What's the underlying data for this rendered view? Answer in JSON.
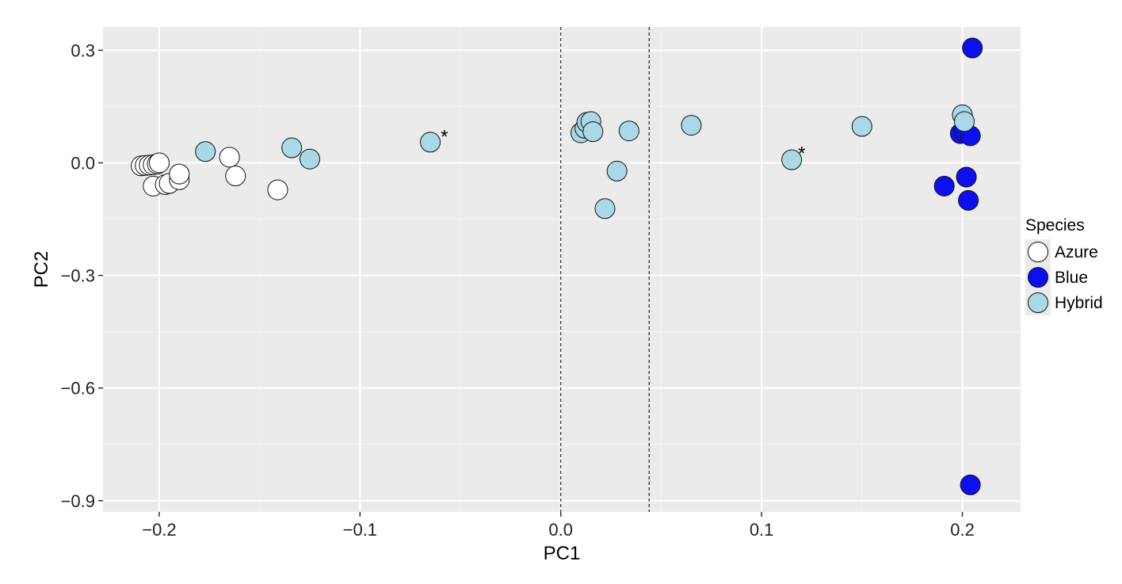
{
  "chart_data": {
    "type": "scatter",
    "title": "",
    "xlabel": "PC1",
    "ylabel": "PC2",
    "xlim": [
      -0.228,
      0.229
    ],
    "ylim": [
      -0.93,
      0.362
    ],
    "x_ticks": [
      -0.2,
      -0.1,
      0.0,
      0.1,
      0.2
    ],
    "x_tick_labels": [
      "−0.2",
      "−0.1",
      "0.0",
      "0.1",
      "0.2"
    ],
    "y_ticks": [
      0.3,
      0.0,
      -0.3,
      -0.6,
      -0.9
    ],
    "y_tick_labels": [
      "0.3",
      "0.0",
      "−0.3",
      "−0.6",
      "−0.9"
    ],
    "grid": true,
    "background": "#ebebeb",
    "reference_lines": [
      {
        "axis": "x",
        "value": 0.0,
        "style": "dashed"
      },
      {
        "axis": "x",
        "value": 0.044,
        "style": "dashed"
      }
    ],
    "legend": {
      "title": "Species",
      "position": "right"
    },
    "series": [
      {
        "name": "Azure",
        "color": "#ffffff",
        "points": [
          [
            -0.209,
            -0.008
          ],
          [
            -0.207,
            -0.007
          ],
          [
            -0.205,
            -0.006
          ],
          [
            -0.203,
            -0.005
          ],
          [
            -0.201,
            -0.003
          ],
          [
            -0.2,
            0.0
          ],
          [
            -0.203,
            -0.062
          ],
          [
            -0.197,
            -0.058
          ],
          [
            -0.195,
            -0.055
          ],
          [
            -0.19,
            -0.045
          ],
          [
            -0.19,
            -0.03
          ],
          [
            -0.165,
            0.015
          ],
          [
            -0.162,
            -0.035
          ],
          [
            -0.141,
            -0.072
          ]
        ]
      },
      {
        "name": "Blue",
        "color": "#0d0ff0",
        "points": [
          [
            0.205,
            0.306
          ],
          [
            0.199,
            0.078
          ],
          [
            0.201,
            0.083
          ],
          [
            0.204,
            0.072
          ],
          [
            0.191,
            -0.062
          ],
          [
            0.202,
            -0.038
          ],
          [
            0.203,
            -0.1
          ],
          [
            0.204,
            -0.858
          ]
        ]
      },
      {
        "name": "Hybrid",
        "color": "#aad8e6",
        "points": [
          [
            -0.177,
            0.03
          ],
          [
            -0.134,
            0.04
          ],
          [
            -0.125,
            0.01
          ],
          [
            -0.065,
            0.055
          ],
          [
            0.01,
            0.08
          ],
          [
            0.012,
            0.092
          ],
          [
            0.013,
            0.108
          ],
          [
            0.015,
            0.11
          ],
          [
            0.016,
            0.083
          ],
          [
            0.028,
            -0.022
          ],
          [
            0.022,
            -0.122
          ],
          [
            0.034,
            0.085
          ],
          [
            0.065,
            0.1
          ],
          [
            0.115,
            0.008
          ],
          [
            0.15,
            0.097
          ],
          [
            0.2,
            0.128
          ],
          [
            0.201,
            0.11
          ]
        ]
      }
    ],
    "annotations": [
      {
        "text": "*",
        "x": -0.058,
        "y": 0.07
      },
      {
        "text": "*",
        "x": 0.12,
        "y": 0.025
      }
    ]
  }
}
